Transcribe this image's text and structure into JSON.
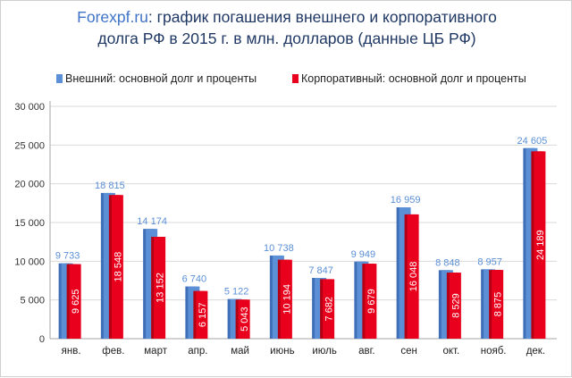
{
  "chart_data": {
    "type": "bar",
    "title": {
      "brand": "Forexpf.ru",
      "line1_rest": ": график погашения внешнего и корпоративного",
      "line2": "долга РФ в 2015 г. в млн. долларов (данные ЦБ РФ)"
    },
    "categories": [
      "янв.",
      "фев.",
      "март",
      "апр.",
      "май",
      "июнь",
      "июль",
      "авг.",
      "сен",
      "окт.",
      "нояб.",
      "дек."
    ],
    "series": [
      {
        "name": "Внешний: основной долг и проценты",
        "color": "#5b8fd6",
        "values": [
          9733,
          18815,
          14174,
          6740,
          5122,
          10738,
          7847,
          9949,
          16959,
          8848,
          8957,
          24605
        ],
        "labels": [
          "9 733",
          "18 815",
          "14 174",
          "6 740",
          "5 122",
          "10 738",
          "7 847",
          "9 949",
          "16 959",
          "8 848",
          "8 957",
          "24 605"
        ]
      },
      {
        "name": "Корпоративный: основной долг и проценты",
        "color": "#e8001c",
        "values": [
          9625,
          18548,
          13152,
          6157,
          5043,
          10194,
          7682,
          9679,
          16048,
          8529,
          8875,
          24189
        ],
        "labels": [
          "9 625",
          "18 548",
          "13 152",
          "6 157",
          "5 043",
          "10 194",
          "7 682",
          "9 679",
          "16 048",
          "8 529",
          "8 875",
          "24 189"
        ]
      }
    ],
    "ylim": [
      0,
      30000
    ],
    "yticks": [
      0,
      5000,
      10000,
      15000,
      20000,
      25000,
      30000
    ],
    "ytick_labels": [
      "0",
      "5 000",
      "10 000",
      "15 000",
      "20 000",
      "25 000",
      "30 000"
    ],
    "grid": true,
    "legend_position": "top-left"
  }
}
